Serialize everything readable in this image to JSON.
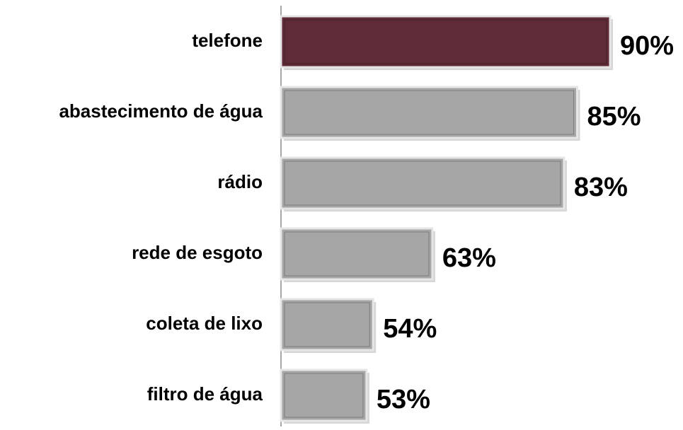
{
  "chart_data": {
    "type": "barh",
    "categories": [
      "telefone",
      "abastecimento de água",
      "rádio",
      "rede de esgoto",
      "coleta de lixo",
      "filtro de água"
    ],
    "values": [
      90,
      85,
      83,
      63,
      54,
      53
    ],
    "value_labels": [
      "90%",
      "85%",
      "83%",
      "63%",
      "54%",
      "53%"
    ],
    "colors": [
      "#5e2b36",
      "#a6a6a6",
      "#a6a6a6",
      "#a6a6a6",
      "#a6a6a6",
      "#a6a6a6"
    ],
    "xlim": [
      40,
      100
    ]
  }
}
